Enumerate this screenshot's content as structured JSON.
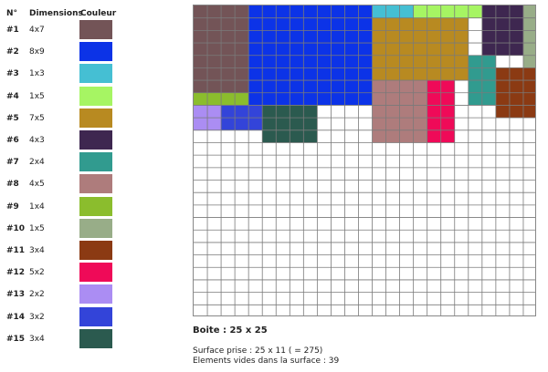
{
  "legend": {
    "headers": {
      "num": "N°",
      "dims": "Dimensions",
      "color": "Couleur"
    },
    "items": [
      {
        "num": "#1",
        "dims": "4x7",
        "color": "#735457"
      },
      {
        "num": "#2",
        "dims": "8x9",
        "color": "#0c33e7"
      },
      {
        "num": "#3",
        "dims": "1x3",
        "color": "#45bfd3"
      },
      {
        "num": "#4",
        "dims": "1x5",
        "color": "#a6f563"
      },
      {
        "num": "#5",
        "dims": "7x5",
        "color": "#b88a21"
      },
      {
        "num": "#6",
        "dims": "4x3",
        "color": "#3e2750"
      },
      {
        "num": "#7",
        "dims": "2x4",
        "color": "#319b8f"
      },
      {
        "num": "#8",
        "dims": "4x5",
        "color": "#ae7c7c"
      },
      {
        "num": "#9",
        "dims": "1x4",
        "color": "#8bbd2d"
      },
      {
        "num": "#10",
        "dims": "1x5",
        "color": "#98ad88"
      },
      {
        "num": "#11",
        "dims": "3x4",
        "color": "#8b3a13"
      },
      {
        "num": "#12",
        "dims": "5x2",
        "color": "#ef0a58"
      },
      {
        "num": "#13",
        "dims": "2x2",
        "color": "#ab8df3"
      },
      {
        "num": "#14",
        "dims": "3x2",
        "color": "#3344d9"
      },
      {
        "num": "#15",
        "dims": "3x4",
        "color": "#2b5a4f"
      }
    ]
  },
  "board": {
    "cols": 25,
    "rows": 25,
    "grid_line_color": "#7a7a7a",
    "empty_color": "#ffffff",
    "placements": [
      {
        "item": 1,
        "col": 0,
        "row": 0,
        "w": 4,
        "h": 7
      },
      {
        "item": 2,
        "col": 4,
        "row": 0,
        "w": 9,
        "h": 8
      },
      {
        "item": 3,
        "col": 13,
        "row": 0,
        "w": 3,
        "h": 1
      },
      {
        "item": 4,
        "col": 16,
        "row": 0,
        "w": 5,
        "h": 1
      },
      {
        "item": 5,
        "col": 13,
        "row": 1,
        "w": 7,
        "h": 5
      },
      {
        "item": 6,
        "col": 21,
        "row": 0,
        "w": 3,
        "h": 4
      },
      {
        "item": 10,
        "col": 24,
        "row": 0,
        "w": 1,
        "h": 5
      },
      {
        "item": 7,
        "col": 20,
        "row": 4,
        "w": 2,
        "h": 4
      },
      {
        "item": 11,
        "col": 22,
        "row": 5,
        "w": 3,
        "h": 4
      },
      {
        "item": 8,
        "col": 13,
        "row": 6,
        "w": 4,
        "h": 5
      },
      {
        "item": 12,
        "col": 17,
        "row": 6,
        "w": 2,
        "h": 5
      },
      {
        "item": 9,
        "col": 0,
        "row": 7,
        "w": 4,
        "h": 1
      },
      {
        "item": 13,
        "col": 0,
        "row": 8,
        "w": 2,
        "h": 2
      },
      {
        "item": 14,
        "col": 2,
        "row": 8,
        "w": 3,
        "h": 2
      },
      {
        "item": 15,
        "col": 5,
        "row": 8,
        "w": 4,
        "h": 3
      }
    ]
  },
  "info": {
    "boite": "Boite : 25 x 25",
    "surface": "Surface prise : 25 x 11 ( = 275)",
    "vides": "Elements vides dans la surface : 39"
  }
}
